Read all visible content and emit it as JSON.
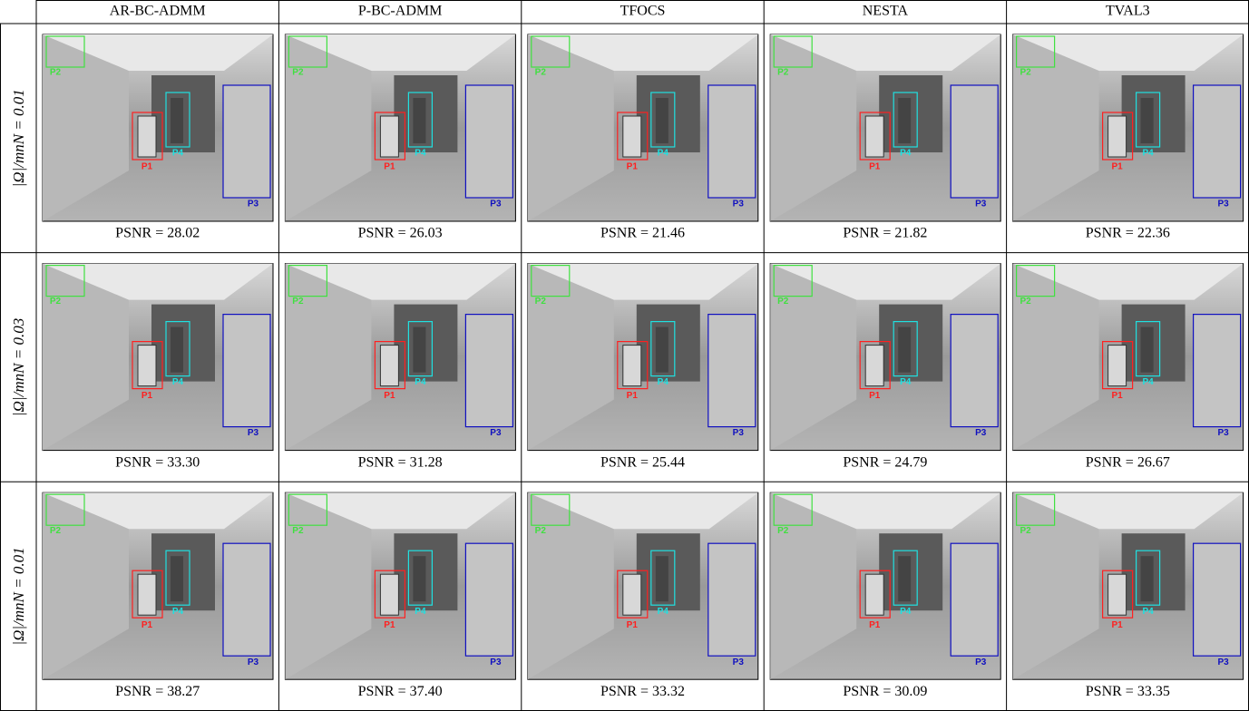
{
  "header": {
    "columns": [
      "AR-BC-ADMM",
      "P-BC-ADMM",
      "TFOCS",
      "NESTA",
      "TVAL3"
    ]
  },
  "rows": [
    {
      "label": "|Ω|/mnN = 0.01",
      "psnr": [
        "PSNR = 28.02",
        "PSNR = 26.03",
        "PSNR = 21.46",
        "PSNR = 21.82",
        "PSNR = 22.36"
      ]
    },
    {
      "label": "|Ω|/mnN = 0.03",
      "psnr": [
        "PSNR = 33.30",
        "PSNR = 31.28",
        "PSNR = 25.44",
        "PSNR = 24.79",
        "PSNR = 26.67"
      ]
    },
    {
      "label": "|Ω|/mnN = 0.01",
      "psnr": [
        "PSNR = 38.27",
        "PSNR = 37.40",
        "PSNR = 33.32",
        "PSNR = 30.09",
        "PSNR = 33.35"
      ]
    }
  ],
  "regions": [
    "P1",
    "P2",
    "P3",
    "P4"
  ]
}
